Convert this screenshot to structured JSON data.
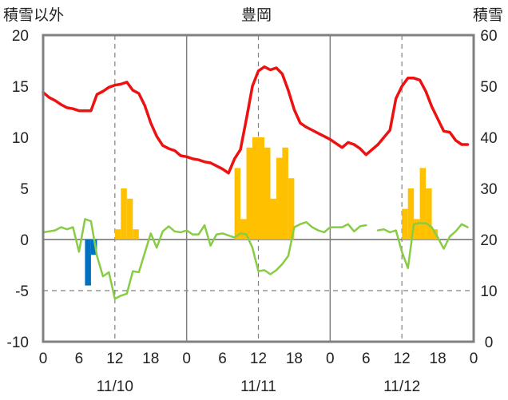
{
  "chart_data": {
    "type": "line+bar",
    "title": "豊岡",
    "left_axis_label": "積雪以外",
    "right_axis_label": "積雪",
    "left_axis": {
      "min": -10,
      "max": 20,
      "ticks": [
        -10,
        -5,
        0,
        5,
        10,
        15,
        20
      ]
    },
    "right_axis": {
      "min": 0,
      "max": 60,
      "ticks": [
        0,
        10,
        20,
        30,
        40,
        50,
        60
      ]
    },
    "x_axis": {
      "hours_total": 72,
      "tick_labels": [
        "0",
        "6",
        "12",
        "18",
        "0",
        "6",
        "12",
        "18",
        "0",
        "6",
        "12",
        "18",
        "0"
      ],
      "tick_hours": [
        0,
        6,
        12,
        18,
        24,
        30,
        36,
        42,
        48,
        54,
        60,
        66,
        72
      ],
      "date_labels": [
        {
          "label": "11/10",
          "hour": 12
        },
        {
          "label": "11/11",
          "hour": 36
        },
        {
          "label": "11/12",
          "hour": 60
        }
      ],
      "solid_gridline_hours": [
        24,
        48
      ],
      "dashed_gridline_hours": [
        12,
        36,
        60
      ]
    },
    "grid": {
      "horizontal": [
        -5
      ],
      "zero_line": 0
    },
    "colors": {
      "temperature": "#ee1111",
      "humidity_series": "#88cc44",
      "precipitation": "#ffc000",
      "negative_bar": "#0070c0",
      "grid": "#808080",
      "frame": "#808080"
    },
    "series": [
      {
        "kind": "line",
        "color_key": "temperature",
        "points": [
          [
            0,
            14.4
          ],
          [
            1,
            13.9
          ],
          [
            2,
            13.6
          ],
          [
            3,
            13.2
          ],
          [
            4,
            12.9
          ],
          [
            5,
            12.8
          ],
          [
            6,
            12.6
          ],
          [
            7,
            12.6
          ],
          [
            8,
            12.6
          ],
          [
            9,
            14.2
          ],
          [
            10,
            14.5
          ],
          [
            11,
            14.9
          ],
          [
            12,
            15.1
          ],
          [
            13,
            15.2
          ],
          [
            14,
            15.4
          ],
          [
            15,
            14.6
          ],
          [
            16,
            14.3
          ],
          [
            17,
            13.1
          ],
          [
            18,
            11.4
          ],
          [
            19,
            10.1
          ],
          [
            20,
            9.2
          ],
          [
            21,
            8.9
          ],
          [
            22,
            8.7
          ],
          [
            23,
            8.2
          ],
          [
            24,
            8.1
          ],
          [
            25,
            7.9
          ],
          [
            26,
            7.8
          ],
          [
            27,
            7.6
          ],
          [
            28,
            7.5
          ],
          [
            29,
            7.2
          ],
          [
            30,
            6.9
          ],
          [
            31,
            6.5
          ],
          [
            32,
            7.9
          ],
          [
            33,
            8.8
          ],
          [
            34,
            11.8
          ],
          [
            35,
            15.0
          ],
          [
            36,
            16.5
          ],
          [
            37,
            16.9
          ],
          [
            38,
            16.6
          ],
          [
            39,
            16.8
          ],
          [
            40,
            16.2
          ],
          [
            41,
            14.6
          ],
          [
            42,
            12.7
          ],
          [
            43,
            11.4
          ],
          [
            44,
            11.0
          ],
          [
            45,
            10.7
          ],
          [
            46,
            10.4
          ],
          [
            47,
            10.1
          ],
          [
            48,
            9.8
          ],
          [
            49,
            9.4
          ],
          [
            50,
            9.0
          ],
          [
            51,
            9.5
          ],
          [
            52,
            9.3
          ],
          [
            53,
            8.9
          ],
          [
            54,
            8.3
          ],
          [
            55,
            8.8
          ],
          [
            56,
            9.3
          ],
          [
            57,
            10.0
          ],
          [
            58,
            10.7
          ],
          [
            59,
            13.8
          ],
          [
            60,
            15.0
          ],
          [
            61,
            15.8
          ],
          [
            62,
            15.8
          ],
          [
            63,
            15.6
          ],
          [
            64,
            14.5
          ],
          [
            65,
            13.0
          ],
          [
            66,
            11.8
          ],
          [
            67,
            10.6
          ],
          [
            68,
            10.5
          ],
          [
            69,
            9.7
          ],
          [
            70,
            9.3
          ],
          [
            71,
            9.3
          ]
        ]
      },
      {
        "kind": "line",
        "color_key": "humidity_series",
        "points": [
          [
            0,
            0.7
          ],
          [
            1,
            0.8
          ],
          [
            2,
            0.9
          ],
          [
            3,
            1.2
          ],
          [
            4,
            1.0
          ],
          [
            5,
            1.2
          ],
          [
            6,
            -1.2
          ],
          [
            7,
            2.0
          ],
          [
            8,
            1.8
          ],
          [
            9,
            -1.6
          ],
          [
            10,
            -3.6
          ],
          [
            11,
            -3.2
          ],
          [
            12,
            -5.8
          ],
          [
            13,
            -5.5
          ],
          [
            14,
            -5.3
          ],
          [
            15,
            -3.1
          ],
          [
            16,
            -3.2
          ],
          [
            17,
            -1.3
          ],
          [
            18,
            0.6
          ],
          [
            19,
            -0.8
          ],
          [
            20,
            0.8
          ],
          [
            21,
            1.3
          ],
          [
            22,
            0.8
          ],
          [
            23,
            0.7
          ],
          [
            24,
            0.9
          ],
          [
            25,
            0.5
          ],
          [
            26,
            0.5
          ],
          [
            27,
            1.4
          ],
          [
            28,
            -0.6
          ],
          [
            29,
            0.5
          ],
          [
            30,
            0.6
          ],
          [
            31,
            0.4
          ],
          [
            32,
            0.2
          ],
          [
            33,
            0.6
          ],
          [
            34,
            0.5
          ],
          [
            35,
            -0.8
          ],
          [
            36,
            -3.1
          ],
          [
            37,
            -3.0
          ],
          [
            38,
            -3.4
          ],
          [
            39,
            -3.0
          ],
          [
            40,
            -2.4
          ],
          [
            41,
            -1.6
          ],
          [
            42,
            1.2
          ],
          [
            43,
            1.5
          ],
          [
            44,
            1.7
          ],
          [
            45,
            1.2
          ],
          [
            46,
            0.9
          ],
          [
            47,
            0.7
          ],
          [
            48,
            1.2
          ],
          [
            49,
            1.2
          ],
          [
            50,
            1.2
          ],
          [
            51,
            1.5
          ],
          [
            52,
            0.8
          ],
          [
            53,
            1.3
          ],
          [
            54,
            1.4
          ],
          null,
          [
            56,
            0.9
          ],
          [
            57,
            1.0
          ],
          [
            58,
            0.7
          ],
          [
            59,
            0.9
          ],
          [
            60,
            -1.2
          ],
          [
            61,
            -2.8
          ],
          [
            62,
            1.5
          ],
          [
            63,
            1.6
          ],
          [
            64,
            1.6
          ],
          [
            65,
            1.2
          ],
          [
            66,
            0.2
          ],
          [
            67,
            -0.9
          ],
          [
            68,
            0.3
          ],
          [
            69,
            0.8
          ],
          [
            70,
            1.5
          ],
          [
            71,
            1.2
          ]
        ]
      }
    ],
    "bars": [
      {
        "hour": 8,
        "value": -4.5,
        "color_key": "negative_bar"
      },
      {
        "hour": 9,
        "value": -1.5,
        "color_key": "negative_bar"
      },
      {
        "hour": 13,
        "value": 1.0,
        "color_key": "precipitation"
      },
      {
        "hour": 14,
        "value": 5.0,
        "color_key": "precipitation"
      },
      {
        "hour": 15,
        "value": 4.0,
        "color_key": "precipitation"
      },
      {
        "hour": 16,
        "value": 1.0,
        "color_key": "precipitation"
      },
      {
        "hour": 33,
        "value": 7.0,
        "color_key": "precipitation"
      },
      {
        "hour": 34,
        "value": 2.0,
        "color_key": "precipitation"
      },
      {
        "hour": 35,
        "value": 9.0,
        "color_key": "precipitation"
      },
      {
        "hour": 36,
        "value": 10.0,
        "color_key": "precipitation"
      },
      {
        "hour": 37,
        "value": 10.0,
        "color_key": "precipitation"
      },
      {
        "hour": 38,
        "value": 9.0,
        "color_key": "precipitation"
      },
      {
        "hour": 39,
        "value": 4.0,
        "color_key": "precipitation"
      },
      {
        "hour": 40,
        "value": 8.0,
        "color_key": "precipitation"
      },
      {
        "hour": 41,
        "value": 9.0,
        "color_key": "precipitation"
      },
      {
        "hour": 42,
        "value": 6.0,
        "color_key": "precipitation"
      },
      {
        "hour": 61,
        "value": 3.0,
        "color_key": "precipitation"
      },
      {
        "hour": 62,
        "value": 5.0,
        "color_key": "precipitation"
      },
      {
        "hour": 63,
        "value": 2.0,
        "color_key": "precipitation"
      },
      {
        "hour": 64,
        "value": 7.0,
        "color_key": "precipitation"
      },
      {
        "hour": 65,
        "value": 5.0,
        "color_key": "precipitation"
      },
      {
        "hour": 66,
        "value": 1.0,
        "color_key": "precipitation"
      }
    ]
  }
}
